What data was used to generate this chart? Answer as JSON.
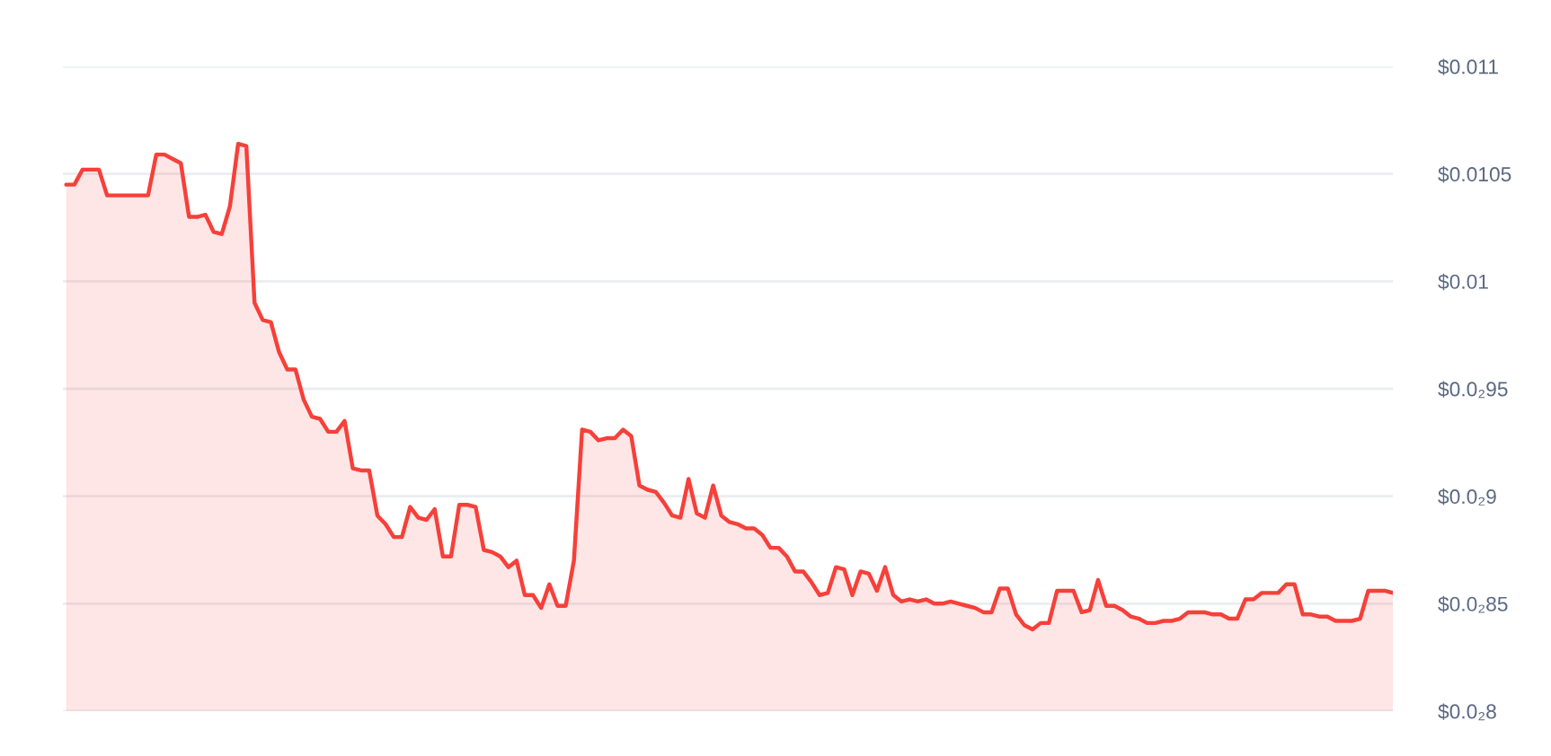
{
  "chart_data": {
    "type": "area",
    "categories": [
      null,
      null,
      null,
      null,
      null,
      null,
      null,
      null,
      null,
      null,
      null,
      null,
      null,
      null,
      null,
      null,
      null,
      null,
      null,
      null,
      null,
      null,
      null,
      null,
      null,
      null,
      null,
      null,
      null,
      null,
      null,
      null,
      null,
      null,
      null,
      null,
      null,
      null,
      null,
      null,
      null,
      null,
      null,
      null,
      null,
      null,
      null,
      null,
      null,
      null,
      null,
      null,
      null,
      null,
      null,
      null,
      null,
      null,
      null,
      null,
      null,
      null,
      null,
      null,
      null,
      null,
      null,
      null,
      null,
      null,
      null,
      null,
      null,
      null,
      null,
      null,
      null,
      null,
      null,
      null,
      null,
      null,
      null,
      null,
      null,
      null,
      null,
      null,
      null,
      null,
      null,
      null,
      null,
      null,
      null,
      null,
      null,
      null,
      null,
      null,
      null,
      null,
      null,
      null,
      null,
      null,
      null,
      null,
      null,
      null,
      null,
      null,
      null,
      null,
      null,
      null,
      null,
      null,
      null,
      null,
      null,
      null,
      null,
      null,
      null,
      null,
      null,
      null,
      null,
      null,
      null,
      null,
      null,
      null,
      null,
      null,
      null,
      null,
      null,
      null,
      null,
      null,
      null,
      null,
      null,
      null,
      null,
      null,
      null,
      null,
      null,
      null,
      null,
      null,
      null,
      null,
      null,
      null,
      null,
      null,
      null,
      null,
      null
    ],
    "values": [
      0.01045,
      0.01045,
      0.01052,
      0.01052,
      0.01052,
      0.0104,
      0.0104,
      0.0104,
      0.0104,
      0.0104,
      0.0104,
      0.01059,
      0.01059,
      0.01057,
      0.01055,
      0.0103,
      0.0103,
      0.01031,
      0.01023,
      0.01022,
      0.01035,
      0.01064,
      0.01063,
      0.0099,
      0.00982,
      0.00981,
      0.00967,
      0.00959,
      0.00959,
      0.00945,
      0.00937,
      0.00936,
      0.0093,
      0.0093,
      0.00935,
      0.00913,
      0.00912,
      0.00912,
      0.00891,
      0.00887,
      0.00881,
      0.00881,
      0.00895,
      0.0089,
      0.00889,
      0.00894,
      0.00872,
      0.00872,
      0.00896,
      0.00896,
      0.00895,
      0.00875,
      0.00874,
      0.00872,
      0.00867,
      0.0087,
      0.00854,
      0.00854,
      0.00848,
      0.00859,
      0.00849,
      0.00849,
      0.0087,
      0.00931,
      0.0093,
      0.00926,
      0.00927,
      0.00927,
      0.00931,
      0.00928,
      0.00905,
      0.00903,
      0.00902,
      0.00897,
      0.00891,
      0.0089,
      0.00908,
      0.00892,
      0.0089,
      0.00905,
      0.00891,
      0.00888,
      0.00887,
      0.00885,
      0.00885,
      0.00882,
      0.00876,
      0.00876,
      0.00872,
      0.00865,
      0.00865,
      0.0086,
      0.00854,
      0.00855,
      0.00867,
      0.00866,
      0.00854,
      0.00865,
      0.00864,
      0.00856,
      0.00867,
      0.00854,
      0.00851,
      0.00852,
      0.00851,
      0.00852,
      0.0085,
      0.0085,
      0.00851,
      0.0085,
      0.00849,
      0.00848,
      0.00846,
      0.00846,
      0.00857,
      0.00857,
      0.00845,
      0.0084,
      0.00838,
      0.00841,
      0.00841,
      0.00856,
      0.00856,
      0.00856,
      0.00846,
      0.00847,
      0.00861,
      0.00849,
      0.00849,
      0.00847,
      0.00844,
      0.00843,
      0.00841,
      0.00841,
      0.00842,
      0.00842,
      0.00843,
      0.00846,
      0.00846,
      0.00846,
      0.00845,
      0.00845,
      0.00843,
      0.00843,
      0.00852,
      0.00852,
      0.00855,
      0.00855,
      0.00855,
      0.00859,
      0.00859,
      0.00845,
      0.00845,
      0.00844,
      0.00844,
      0.00842,
      0.00842,
      0.00842,
      0.00843,
      0.00856,
      0.00856,
      0.00856,
      0.00855
    ],
    "color": "#f6403a",
    "ylim": [
      0.008,
      0.011
    ],
    "yticks": [
      {
        "value": 0.008,
        "label": "$0.0₂8"
      },
      {
        "value": 0.0085,
        "label": "$0.0₂85"
      },
      {
        "value": 0.009,
        "label": "$0.0₂9"
      },
      {
        "value": 0.0095,
        "label": "$0.0₂95"
      },
      {
        "value": 0.01,
        "label": "$0.01"
      },
      {
        "value": 0.0105,
        "label": "$0.0105"
      },
      {
        "value": 0.011,
        "label": "$0.011"
      }
    ],
    "grid": "y",
    "tick_labels": "y"
  }
}
